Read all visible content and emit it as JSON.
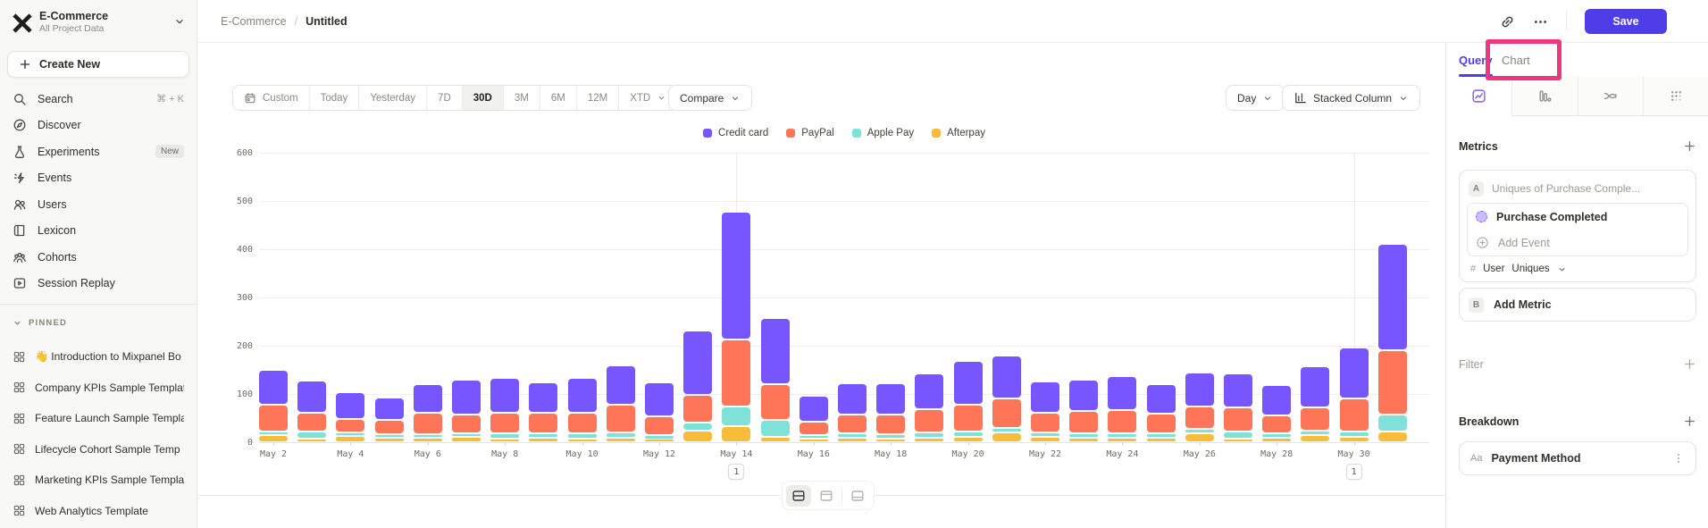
{
  "colors": {
    "accent": "#4F3EE8",
    "annotation_highlight": "#F0377E",
    "sidebar_bg": "#f8f8f6"
  },
  "app": {
    "project": {
      "name": "E-Commerce",
      "subtitle": "All Project Data"
    }
  },
  "sidebar": {
    "create_new": "Create New",
    "nav": [
      {
        "label": "Search",
        "icon": "search-icon",
        "shortcut": "⌘ + K"
      },
      {
        "label": "Discover",
        "icon": "discover-icon"
      },
      {
        "label": "Experiments",
        "icon": "experiments-icon",
        "badge": "New"
      },
      {
        "label": "Events",
        "icon": "events-icon"
      },
      {
        "label": "Users",
        "icon": "users-icon"
      },
      {
        "label": "Lexicon",
        "icon": "lexicon-icon"
      },
      {
        "label": "Cohorts",
        "icon": "cohorts-icon"
      },
      {
        "label": "Session Replay",
        "icon": "session-replay-icon"
      }
    ],
    "pinned_header": "PINNED",
    "pinned": [
      "👋 Introduction to Mixpanel Bo",
      "Company KPIs Sample Templat",
      "Feature Launch Sample Templa",
      "Lifecycle Cohort Sample Temp",
      "Marketing KPIs Sample Templat",
      "Web Analytics Template"
    ]
  },
  "header": {
    "breadcrumb_project": "E-Commerce",
    "breadcrumb_separator": "/",
    "breadcrumb_page": "Untitled",
    "save_label": "Save"
  },
  "toolbar": {
    "date_ranges": [
      {
        "label": "Custom",
        "icon": "calendar-icon"
      },
      {
        "label": "Today"
      },
      {
        "label": "Yesterday"
      },
      {
        "label": "7D"
      },
      {
        "label": "30D",
        "selected": true
      },
      {
        "label": "3M"
      },
      {
        "label": "6M"
      },
      {
        "label": "12M"
      },
      {
        "label": "XTD",
        "dropdown": true
      }
    ],
    "compare_label": "Compare",
    "granularity": "Day",
    "chart_type": "Stacked Column"
  },
  "query_panel": {
    "tabs": [
      "Query",
      "Chart"
    ],
    "active_tab": "Query",
    "metrics": {
      "title": "Metrics",
      "row_label": "A",
      "row_title": "Uniques of Purchase Comple...",
      "event_name": "Purchase Completed",
      "add_event": "Add Event",
      "count_prefix": "#",
      "count_entity": "User",
      "count_type": "Uniques",
      "add_metric_label": "B",
      "add_metric": "Add Metric"
    },
    "filter_title": "Filter",
    "breakdown_title": "Breakdown",
    "breakdown_item": "Payment Method",
    "breakdown_item_icon": "Aa"
  },
  "screenshot_annotation": {
    "note": "pink highlight box around Chart tab",
    "color": "#F0377E"
  },
  "chart_data": {
    "type": "bar",
    "stacked": true,
    "title": "",
    "xlabel": "",
    "ylabel": "",
    "ylim": [
      0,
      600
    ],
    "yticks": [
      0,
      100,
      200,
      300,
      400,
      500,
      600
    ],
    "grid": true,
    "legend_position": "top",
    "x": [
      "May 2",
      "May 3",
      "May 4",
      "May 5",
      "May 6",
      "May 7",
      "May 8",
      "May 9",
      "May 10",
      "May 11",
      "May 12",
      "May 13",
      "May 14",
      "May 15",
      "May 16",
      "May 17",
      "May 18",
      "May 19",
      "May 20",
      "May 21",
      "May 22",
      "May 23",
      "May 24",
      "May 25",
      "May 26",
      "May 27",
      "May 28",
      "May 29",
      "May 30",
      "May 31"
    ],
    "series": [
      {
        "name": "Credit card",
        "color": "#7856FF",
        "values": [
          72,
          66,
          56,
          47,
          58,
          73,
          72,
          63,
          71,
          82,
          72,
          134,
          265,
          137,
          54,
          64,
          64,
          75,
          92,
          90,
          64,
          65,
          71,
          61,
          70,
          71,
          63,
          85,
          106,
          221
        ]
      },
      {
        "name": "PayPal",
        "color": "#FF7557",
        "values": [
          56,
          40,
          27,
          29,
          46,
          38,
          44,
          44,
          44,
          58,
          38,
          58,
          139,
          74,
          29,
          40,
          42,
          48,
          55,
          60,
          42,
          46,
          48,
          42,
          46,
          50,
          38,
          48,
          68,
          133
        ]
      },
      {
        "name": "Apple Pay",
        "color": "#80E1D9",
        "values": [
          8,
          14,
          8,
          8,
          6,
          8,
          10,
          8,
          10,
          10,
          10,
          15,
          40,
          34,
          6,
          8,
          8,
          10,
          10,
          10,
          8,
          8,
          8,
          8,
          10,
          14,
          8,
          10,
          10,
          36
        ]
      },
      {
        "name": "Afterpay",
        "color": "#F8BC3B",
        "values": [
          14,
          8,
          13,
          9,
          10,
          11,
          8,
          10,
          8,
          10,
          5,
          25,
          34,
          12,
          8,
          10,
          8,
          10,
          12,
          20,
          12,
          10,
          10,
          10,
          18,
          8,
          10,
          14,
          12,
          22
        ]
      }
    ],
    "stack_order_bottom_to_top": [
      "Afterpay",
      "Apple Pay",
      "PayPal",
      "Credit card"
    ],
    "annotations": [
      {
        "x": "May 14",
        "label": "1"
      },
      {
        "x": "May 30",
        "label": "1"
      }
    ]
  }
}
